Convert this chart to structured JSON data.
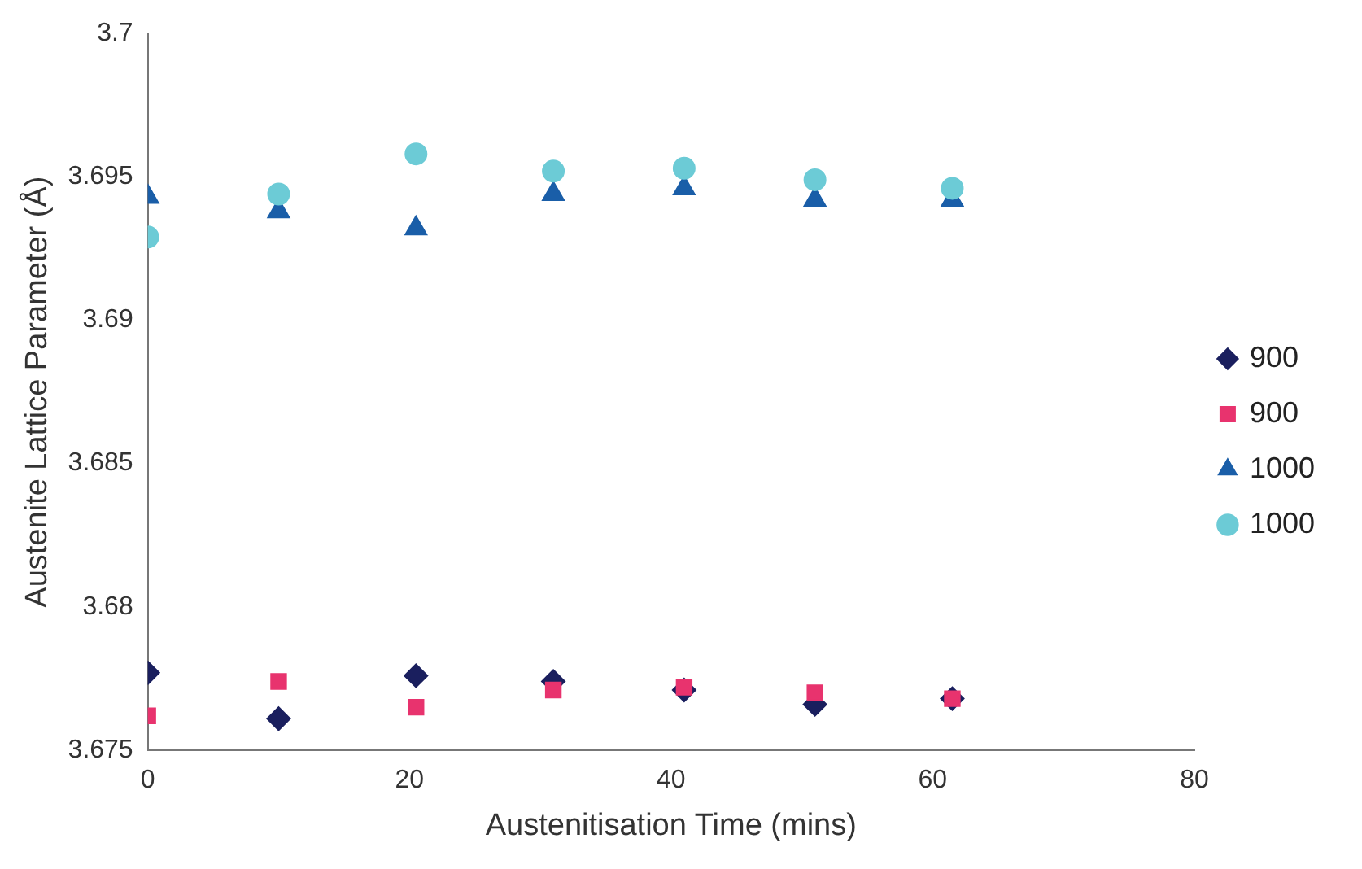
{
  "chart_data": {
    "type": "scatter",
    "xlabel": "Austenitisation Time (mins)",
    "ylabel": "Austenite Lattice Parameter (Å)",
    "xlim": [
      0,
      80
    ],
    "xticks": [
      0,
      20,
      40,
      60,
      80
    ],
    "ylim": [
      3.675,
      3.7
    ],
    "yticks": [
      3.675,
      3.68,
      3.685,
      3.69,
      3.695,
      3.7
    ],
    "grid": false,
    "legend": "right",
    "series": [
      {
        "name": "900",
        "color": "#1a1f5e",
        "marker": "diamond",
        "x": [
          0,
          10,
          20.5,
          31,
          41,
          51,
          61.5
        ],
        "values": [
          3.6777,
          3.6761,
          3.6776,
          3.6774,
          3.6771,
          3.6766,
          3.6768
        ]
      },
      {
        "name": "900",
        "color": "#e8336e",
        "marker": "square",
        "x": [
          0,
          10,
          20.5,
          31,
          41,
          51,
          61.5
        ],
        "values": [
          3.6762,
          3.6774,
          3.6765,
          3.6771,
          3.6772,
          3.677,
          3.6768
        ]
      },
      {
        "name": "1000",
        "color": "#1a5ea8",
        "marker": "triangle",
        "x": [
          0,
          10,
          20.5,
          31,
          41,
          51,
          61.5
        ],
        "values": [
          3.6943,
          3.6938,
          3.6932,
          3.6944,
          3.6946,
          3.6942,
          3.6942
        ]
      },
      {
        "name": "1000",
        "color": "#6ccbd6",
        "marker": "circle",
        "x": [
          0,
          10,
          20.5,
          31,
          41,
          51,
          61.5
        ],
        "values": [
          3.6929,
          3.6944,
          3.6958,
          3.6952,
          3.6953,
          3.6949,
          3.6946
        ]
      }
    ]
  }
}
